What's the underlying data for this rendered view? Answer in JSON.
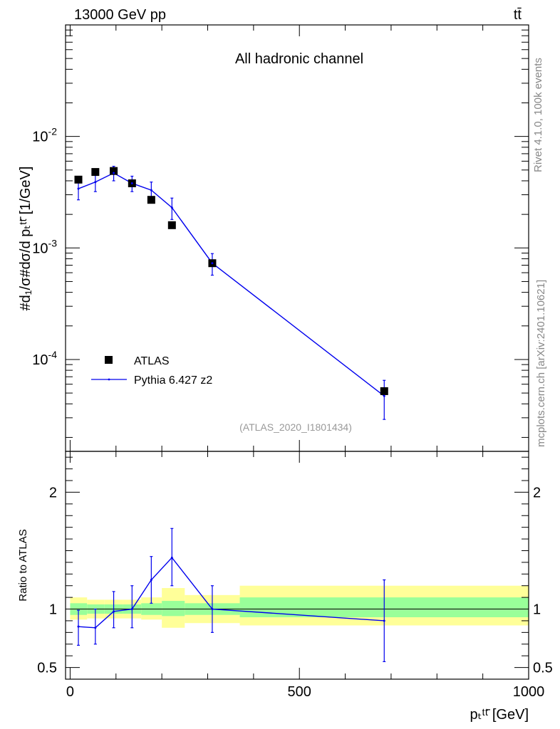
{
  "header": {
    "energy_label": "13000 GeV pp",
    "process_label": "tt̄"
  },
  "side_labels": {
    "rivet": "Rivet 4.1.0,  100k events",
    "mcplots": "mcplots.cern.ch [arXiv:2401.10621]"
  },
  "colors": {
    "mc_line": "#0000ee",
    "data_marker": "#000000",
    "band_outer": "#ffff99",
    "band_inner": "#99ff99"
  },
  "chart_data": [
    {
      "type": "scatter",
      "panel": "main",
      "title": "All hadronic channel",
      "analysis_id": "(ATLAS_2020_I1801434)",
      "ylabel": "#d₁/σ#dσ/d pₜᵗᵗ̄ [1/GeV]",
      "yscale": "log",
      "ylim": [
        1.5e-05,
        0.1
      ],
      "xlim": [
        -10,
        1000
      ],
      "y_ticks": [
        {
          "value": 0.01,
          "base": "10",
          "exp": "-2"
        },
        {
          "value": 0.001,
          "base": "10",
          "exp": "-3"
        },
        {
          "value": 0.0001,
          "base": "10",
          "exp": "-4"
        }
      ],
      "legend": {
        "position": "bottom-left",
        "entries": [
          "ATLAS",
          "Pythia 6.427 z2"
        ]
      },
      "series": [
        {
          "name": "ATLAS",
          "x": [
            18,
            55,
            95,
            135,
            177,
            222,
            310,
            685
          ],
          "y": [
            0.0041,
            0.0048,
            0.0049,
            0.0038,
            0.0027,
            0.0016,
            0.00073,
            5.2e-05
          ]
        },
        {
          "name": "Pythia 6.427 z2",
          "x": [
            18,
            55,
            95,
            135,
            177,
            222,
            310,
            685
          ],
          "y": [
            0.0034,
            0.0039,
            0.0047,
            0.0038,
            0.0033,
            0.0023,
            0.00073,
            4.7e-05
          ],
          "y_low": [
            0.0027,
            0.0032,
            0.004,
            0.0032,
            0.0027,
            0.0018,
            0.00057,
            2.9e-05
          ],
          "y_high": [
            0.0041,
            0.0046,
            0.0054,
            0.0044,
            0.0039,
            0.0028,
            0.00089,
            6.5e-05
          ]
        }
      ]
    },
    {
      "type": "line",
      "panel": "ratio",
      "ylabel": "Ratio to ATLAS",
      "xlabel": "pₜᵗᵗ̄ [GeV]",
      "ylim": [
        0.4,
        2.35
      ],
      "xlim": [
        -10,
        1000
      ],
      "y_tick_labels": [
        {
          "value": 0.5,
          "label": "0.5"
        },
        {
          "value": 1,
          "label": "1"
        },
        {
          "value": 2,
          "label": "2"
        }
      ],
      "x_tick_labels": [
        {
          "value": 0,
          "label": "0"
        },
        {
          "value": 500,
          "label": "500"
        },
        {
          "value": 1000,
          "label": "1000"
        }
      ],
      "bins": [
        {
          "lo": 0,
          "hi": 37,
          "inner": [
            0.95,
            1.05
          ],
          "outer": [
            0.91,
            1.1
          ]
        },
        {
          "lo": 37,
          "hi": 75,
          "inner": [
            0.96,
            1.04
          ],
          "outer": [
            0.92,
            1.08
          ]
        },
        {
          "lo": 75,
          "hi": 115,
          "inner": [
            0.96,
            1.04
          ],
          "outer": [
            0.92,
            1.08
          ]
        },
        {
          "lo": 115,
          "hi": 155,
          "inner": [
            0.96,
            1.04
          ],
          "outer": [
            0.92,
            1.08
          ]
        },
        {
          "lo": 155,
          "hi": 200,
          "inner": [
            0.95,
            1.05
          ],
          "outer": [
            0.91,
            1.1
          ]
        },
        {
          "lo": 200,
          "hi": 250,
          "inner": [
            0.94,
            1.07
          ],
          "outer": [
            0.84,
            1.18
          ]
        },
        {
          "lo": 250,
          "hi": 370,
          "inner": [
            0.95,
            1.05
          ],
          "outer": [
            0.88,
            1.12
          ]
        },
        {
          "lo": 370,
          "hi": 1000,
          "inner": [
            0.93,
            1.1
          ],
          "outer": [
            0.86,
            1.2
          ]
        }
      ],
      "reference_line": 1,
      "series": [
        {
          "name": "Pythia 6.427 z2",
          "x": [
            18,
            55,
            95,
            135,
            177,
            222,
            310,
            685
          ],
          "y": [
            0.85,
            0.84,
            0.98,
            1.0,
            1.25,
            1.44,
            1.0,
            0.9
          ],
          "y_low": [
            0.69,
            0.7,
            0.84,
            0.84,
            1.05,
            1.2,
            0.8,
            0.55
          ],
          "y_high": [
            0.99,
            1.0,
            1.15,
            1.2,
            1.45,
            1.69,
            1.2,
            1.25
          ]
        }
      ]
    }
  ]
}
